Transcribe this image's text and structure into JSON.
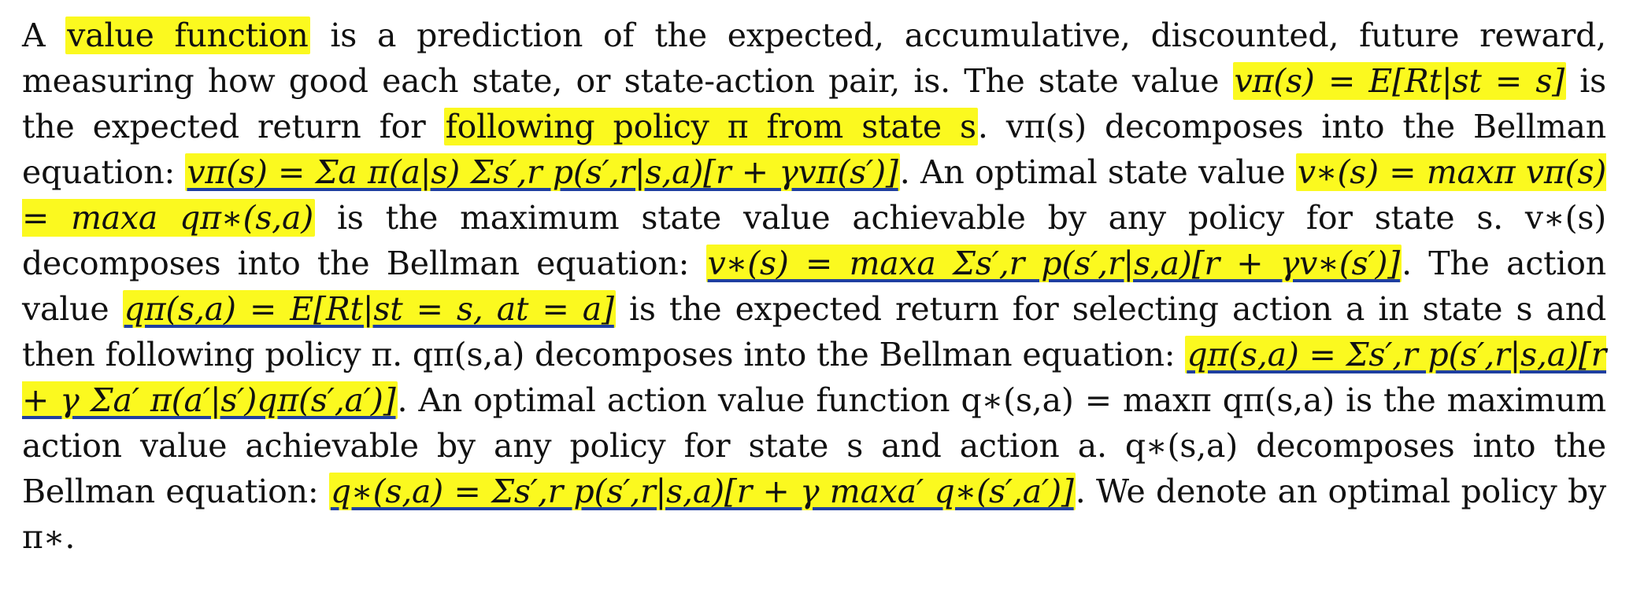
{
  "paragraph": {
    "t00": "A ",
    "h01": "value function",
    "t02": " is a prediction of the expected, accumulative, discounted, future reward, measuring how good each state, or state-action pair, is. The state value ",
    "h03": "vπ(s) = E[Rt|st = s]",
    "t04": " is the expected return for ",
    "h05": "following policy π from state s",
    "t06": ". vπ(s) decomposes into the Bellman equation: ",
    "h07": "vπ(s) = Σa π(a|s) Σs′,r p(s′,r|s,a)[r + γvπ(s′)]",
    "t08": ". An optimal state value ",
    "h09": "v∗(s) = maxπ vπ(s) = maxa qπ∗(s,a)",
    "t10": " is the maximum state value achievable by any policy for state s. v∗(s) decomposes into the Bellman equation: ",
    "h11": "v∗(s) = maxa Σs′,r p(s′,r|s,a)[r + γv∗(s′)]",
    "t12": ". The action value ",
    "h13": "qπ(s,a) = E[Rt|st = s, at = a]",
    "t14": " is the expected return for selecting action a in state s and then following policy π. qπ(s,a) decomposes into the Bellman equation: ",
    "h15": "qπ(s,a) = Σs′,r p(s′,r|s,a)[r + γ Σa′ π(a′|s′)qπ(s′,a′)]",
    "t16": ". An optimal action value function q∗(s,a) = maxπ qπ(s,a) is the maximum action value achievable by any policy for state s and action a. q∗(s,a) decomposes into the Bellman equation: ",
    "h17": "q∗(s,a) = Σs′,r p(s′,r|s,a)[r + γ maxa′ q∗(s′,a′)]",
    "t18": ". We denote an optimal policy by π∗."
  },
  "colors": {
    "highlight": "#fbf91f",
    "underline": "#1f3fa0",
    "text": "#111111"
  }
}
